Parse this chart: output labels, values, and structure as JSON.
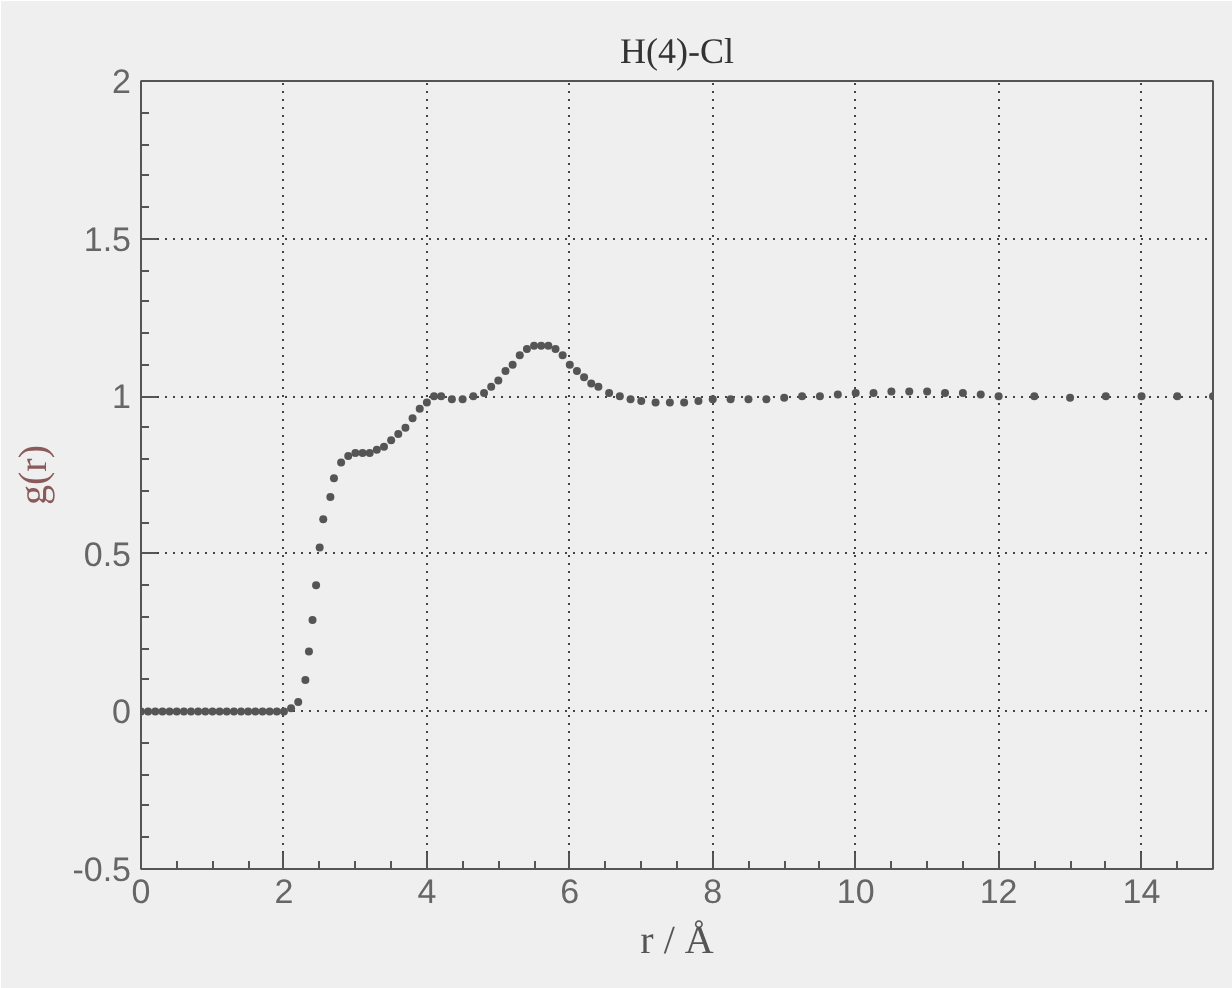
{
  "chart_data": {
    "type": "scatter",
    "title": "H(4)-Cl",
    "xlabel": "r / Å",
    "ylabel": "g(r)",
    "x": [
      0,
      0.1,
      0.2,
      0.3,
      0.4,
      0.5,
      0.6,
      0.7,
      0.8,
      0.9,
      1.0,
      1.1,
      1.2,
      1.3,
      1.4,
      1.5,
      1.6,
      1.7,
      1.8,
      1.9,
      2.0,
      2.1,
      2.2,
      2.3,
      2.35,
      2.4,
      2.45,
      2.5,
      2.55,
      2.65,
      2.7,
      2.8,
      2.9,
      3.0,
      3.1,
      3.2,
      3.3,
      3.4,
      3.5,
      3.6,
      3.7,
      3.8,
      3.9,
      4.0,
      4.1,
      4.2,
      4.35,
      4.5,
      4.65,
      4.8,
      4.9,
      5.0,
      5.1,
      5.2,
      5.3,
      5.4,
      5.5,
      5.6,
      5.7,
      5.8,
      5.9,
      6.0,
      6.1,
      6.2,
      6.3,
      6.4,
      6.55,
      6.7,
      6.85,
      7.0,
      7.2,
      7.4,
      7.6,
      7.8,
      8.0,
      8.25,
      8.5,
      8.75,
      9.0,
      9.25,
      9.5,
      9.75,
      10.0,
      10.25,
      10.5,
      10.75,
      11.0,
      11.25,
      11.5,
      11.75,
      12.0,
      12.5,
      13.0,
      13.5,
      14.0,
      14.5,
      15.0
    ],
    "values": [
      0,
      0,
      0,
      0,
      0,
      0,
      0,
      0,
      0,
      0,
      0,
      0,
      0,
      0,
      0,
      0,
      0,
      0,
      0,
      0,
      0,
      0.01,
      0.03,
      0.1,
      0.19,
      0.29,
      0.4,
      0.52,
      0.61,
      0.68,
      0.74,
      0.79,
      0.81,
      0.82,
      0.82,
      0.82,
      0.83,
      0.84,
      0.86,
      0.88,
      0.9,
      0.93,
      0.96,
      0.98,
      1.0,
      1.0,
      0.99,
      0.99,
      1.0,
      1.01,
      1.03,
      1.05,
      1.08,
      1.1,
      1.13,
      1.15,
      1.16,
      1.16,
      1.16,
      1.15,
      1.13,
      1.1,
      1.08,
      1.06,
      1.04,
      1.03,
      1.01,
      1.0,
      0.99,
      0.985,
      0.98,
      0.98,
      0.98,
      0.985,
      0.99,
      0.99,
      0.99,
      0.99,
      0.995,
      1.0,
      1.0,
      1.005,
      1.01,
      1.01,
      1.015,
      1.015,
      1.015,
      1.01,
      1.01,
      1.005,
      1.0,
      1.0,
      0.995,
      1.0,
      1.0,
      1.0,
      1.0
    ],
    "color": "#555555",
    "marker": "circle",
    "grid": true,
    "xlim": [
      0,
      15
    ],
    "xticks": [
      0,
      2,
      4,
      6,
      8,
      10,
      12,
      14
    ],
    "ylim": [
      -0.5,
      2
    ],
    "yticks": [
      -0.5,
      0,
      0.5,
      1,
      1.5,
      2
    ]
  }
}
